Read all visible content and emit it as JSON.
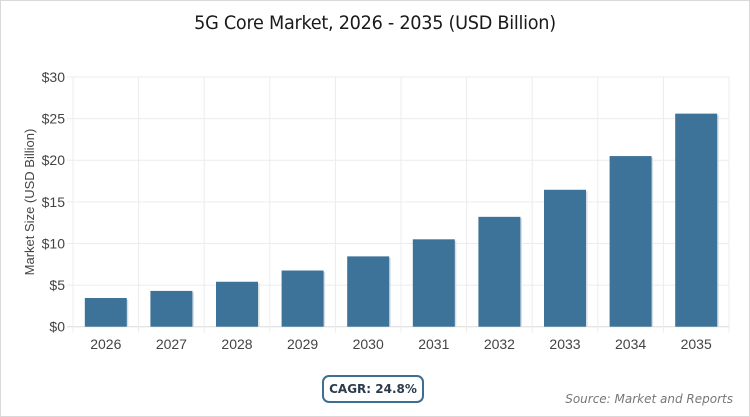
{
  "chart_data": {
    "type": "bar",
    "title": "5G Core Market, 2026 - 2035 (USD Billion)",
    "xlabel": "",
    "ylabel": "Market Size (USD Billion)",
    "categories": [
      "2026",
      "2027",
      "2028",
      "2029",
      "2030",
      "2031",
      "2032",
      "2033",
      "2034",
      "2035"
    ],
    "values": [
      3.45,
      4.3,
      5.4,
      6.75,
      8.45,
      10.5,
      13.2,
      16.45,
      20.5,
      25.6
    ],
    "ylim": [
      0,
      30
    ],
    "yticks": [
      0,
      5,
      10,
      15,
      20,
      25,
      30
    ],
    "ytick_labels": [
      "$0",
      "$5",
      "$10",
      "$15",
      "$20",
      "$25",
      "$30"
    ],
    "grid": true,
    "bar_color": "#3d7399",
    "legend": "none"
  },
  "badge": {
    "cagr_label": "CAGR: 24.8%"
  },
  "footer": {
    "source": "Source: Market and Reports"
  }
}
